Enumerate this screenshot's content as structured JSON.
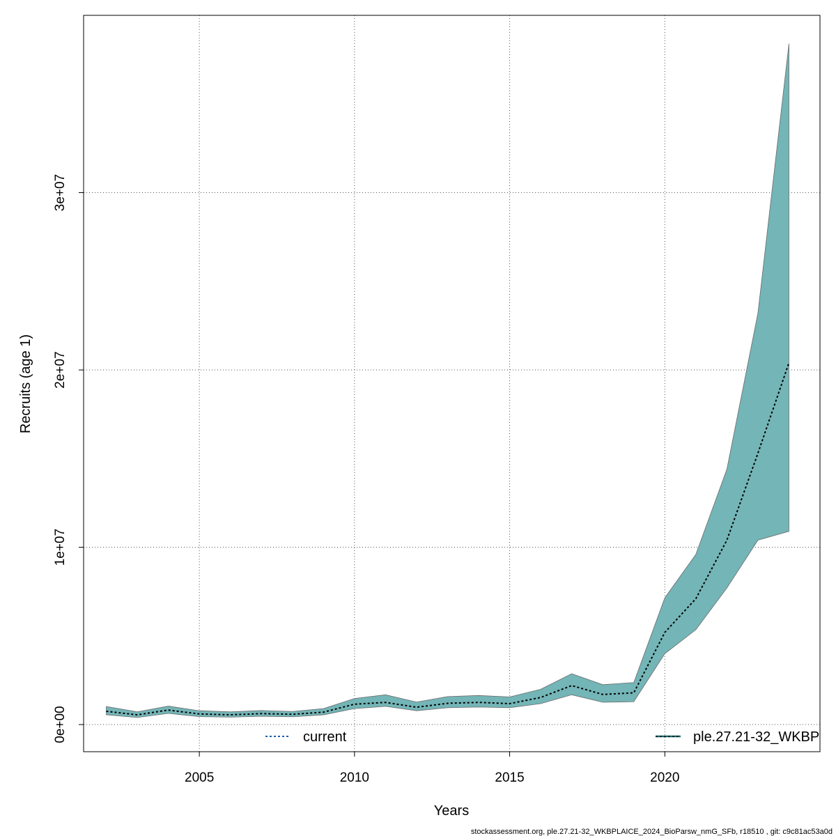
{
  "chart_data": {
    "type": "area",
    "xlabel": "Years",
    "ylabel": "Recruits (age 1)",
    "xlim": [
      2001.27,
      2025.0
    ],
    "ylim": [
      -1530000,
      40000000
    ],
    "x_ticks": [
      2005,
      2010,
      2015,
      2020
    ],
    "x_tick_labels": [
      "2005",
      "2010",
      "2015",
      "2020"
    ],
    "y_ticks": [
      0,
      10000000,
      20000000,
      30000000
    ],
    "y_tick_labels": [
      "0e+00",
      "1e+07",
      "2e+07",
      "3e+07"
    ],
    "grid": true,
    "x": [
      2002,
      2003,
      2004,
      2005,
      2006,
      2007,
      2008,
      2009,
      2010,
      2011,
      2012,
      2013,
      2014,
      2015,
      2016,
      2017,
      2018,
      2019,
      2020,
      2021,
      2022,
      2023,
      2024
    ],
    "series": [
      {
        "name": "ple.27.21-32_WKBP",
        "values": [
          750000,
          550000,
          820000,
          600000,
          550000,
          620000,
          580000,
          700000,
          1150000,
          1250000,
          980000,
          1200000,
          1250000,
          1180000,
          1530000,
          2200000,
          1700000,
          1790000,
          5200000,
          7100000,
          10400000,
          15300000,
          20400000
        ],
        "lower": [
          550000,
          400000,
          630000,
          450000,
          420000,
          470000,
          440000,
          550000,
          900000,
          1030000,
          780000,
          950000,
          990000,
          950000,
          1180000,
          1680000,
          1260000,
          1290000,
          4000000,
          5350000,
          7700000,
          10400000,
          10900000
        ],
        "upper": [
          1020000,
          720000,
          1040000,
          780000,
          720000,
          790000,
          740000,
          900000,
          1470000,
          1680000,
          1270000,
          1580000,
          1640000,
          1560000,
          1990000,
          2870000,
          2250000,
          2370000,
          7150000,
          9600000,
          14400000,
          23200000,
          38400000
        ]
      }
    ],
    "legend": [
      {
        "label": "current",
        "placement": "bottom-center",
        "color": "#1f5fa8"
      },
      {
        "label": "ple.27.21-32_WKBP",
        "placement": "bottom-right",
        "color": "#1a6b6b"
      }
    ],
    "band_color": "#74b5b7",
    "band_edge_color": "#6a6a6a",
    "line_color": "#000000"
  },
  "footer": "stockassessment.org, ple.27.21-32_WKBPLAICE_2024_BioParsw_nmG_SFb, r18510 , git: c9c81ac53a0d"
}
